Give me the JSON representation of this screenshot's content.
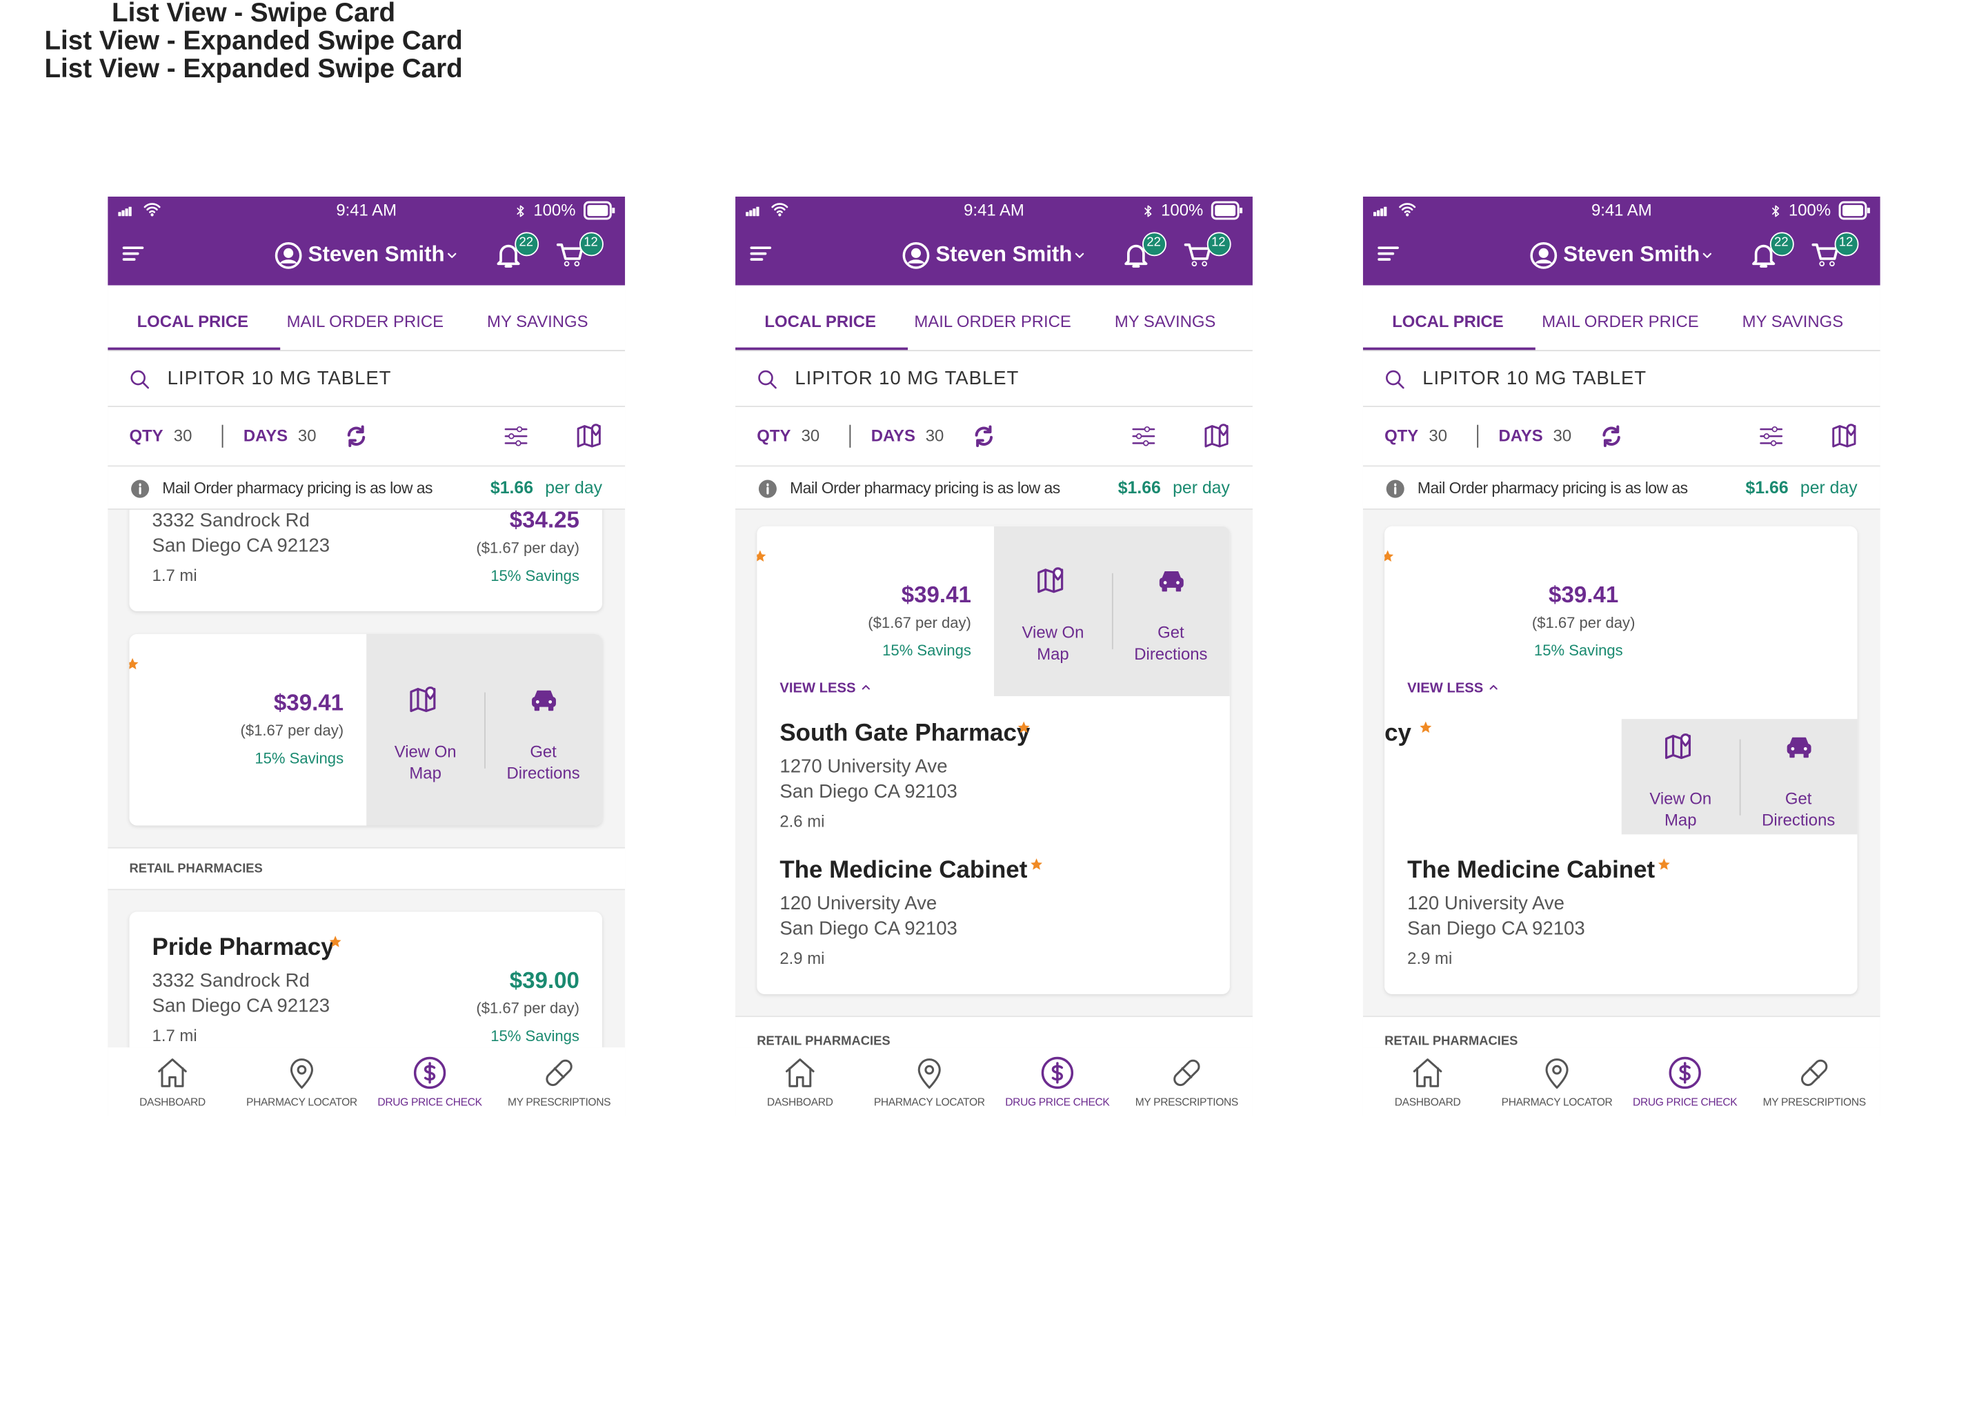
{
  "screens": [
    {
      "title": "List View - Swipe Card",
      "status": {
        "time": "9:41 AM",
        "battery": "100%"
      },
      "header": {
        "user": "Steven Smith",
        "notifications": "22",
        "cart": "12"
      },
      "tabs": [
        "LOCAL PRICE",
        "MAIL ORDER PRICE",
        "MY SAVINGS"
      ],
      "search": "LIPITOR 10 MG TABLET",
      "qty_label": "QTY",
      "qty": "30",
      "days_label": "DAYS",
      "days": "30",
      "notice": {
        "text": "Mail Order pharmacy pricing is as low as",
        "price": "$1.66",
        "unit": "per day"
      },
      "body": {
        "cards": [
          {
            "address": [
              "3332 Sandrock Rd",
              "San Diego CA 92123"
            ],
            "distance": "1.7 mi",
            "price": "$34.25",
            "per_day": "($1.67 per day)",
            "savings": "15% Savings"
          },
          {
            "price": "$39.41",
            "per_day": "($1.67 per day)",
            "savings": "15% Savings",
            "actions": [
              "View On Map",
              "Get Directions"
            ]
          }
        ],
        "section": "RETAIL PHARMACIES",
        "pharmacy": {
          "name": "Pride Pharmacy",
          "address": [
            "3332 Sandrock Rd",
            "San Diego CA 92123"
          ],
          "distance": "1.7 mi",
          "price": "$39.00",
          "per_day": "($1.67 per day)",
          "savings": "15% Savings"
        }
      },
      "nav": [
        "DASHBOARD",
        "PHARMACY LOCATOR",
        "DRUG PRICE CHECK",
        "MY PRESCRIPTIONS"
      ]
    },
    {
      "title": "List View - Expanded Swipe Card",
      "status": {
        "time": "9:41 AM",
        "battery": "100%"
      },
      "header": {
        "user": "Steven Smith",
        "notifications": "22",
        "cart": "12"
      },
      "tabs": [
        "LOCAL PRICE",
        "MAIL ORDER PRICE",
        "MY SAVINGS"
      ],
      "search": "LIPITOR 10 MG TABLET",
      "qty_label": "QTY",
      "qty": "30",
      "days_label": "DAYS",
      "days": "30",
      "notice": {
        "text": "Mail Order pharmacy pricing is as low as",
        "price": "$1.66",
        "unit": "per day"
      },
      "body": {
        "swipe": {
          "price": "$39.41",
          "per_day": "($1.67 per day)",
          "savings": "15% Savings",
          "toggle": "VIEW LESS",
          "actions": [
            "View On Map",
            "Get Directions"
          ]
        },
        "list": [
          {
            "name": "South Gate Pharmacy",
            "address": [
              "1270 University Ave",
              "San Diego CA 92103"
            ],
            "distance": "2.6 mi"
          },
          {
            "name": "The Medicine Cabinet",
            "address": [
              "120 University Ave",
              "San Diego CA 92103"
            ],
            "distance": "2.9 mi"
          }
        ],
        "section": "RETAIL PHARMACIES"
      },
      "nav": [
        "DASHBOARD",
        "PHARMACY LOCATOR",
        "DRUG PRICE CHECK",
        "MY PRESCRIPTIONS"
      ]
    },
    {
      "title": "List View - Expanded Swipe Card",
      "status": {
        "time": "9:41 AM",
        "battery": "100%"
      },
      "header": {
        "user": "Steven Smith",
        "notifications": "22",
        "cart": "12"
      },
      "tabs": [
        "LOCAL PRICE",
        "MAIL ORDER PRICE",
        "MY SAVINGS"
      ],
      "search": "LIPITOR 10 MG TABLET",
      "qty_label": "QTY",
      "qty": "30",
      "days_label": "DAYS",
      "days": "30",
      "notice": {
        "text": "Mail Order pharmacy pricing is as low as",
        "price": "$1.66",
        "unit": "per day"
      },
      "body": {
        "swipe": {
          "price": "$39.41",
          "per_day": "($1.67 per day)",
          "savings": "15% Savings",
          "toggle": "VIEW LESS"
        },
        "partial_name": "cy",
        "actions": [
          "View On Map",
          "Get Directions"
        ],
        "list": [
          {
            "name": "The Medicine Cabinet",
            "address": [
              "120 University Ave",
              "San Diego CA 92103"
            ],
            "distance": "2.9 mi"
          }
        ],
        "section": "RETAIL PHARMACIES"
      },
      "nav": [
        "DASHBOARD",
        "PHARMACY LOCATOR",
        "DRUG PRICE CHECK",
        "MY PRESCRIPTIONS"
      ]
    }
  ]
}
